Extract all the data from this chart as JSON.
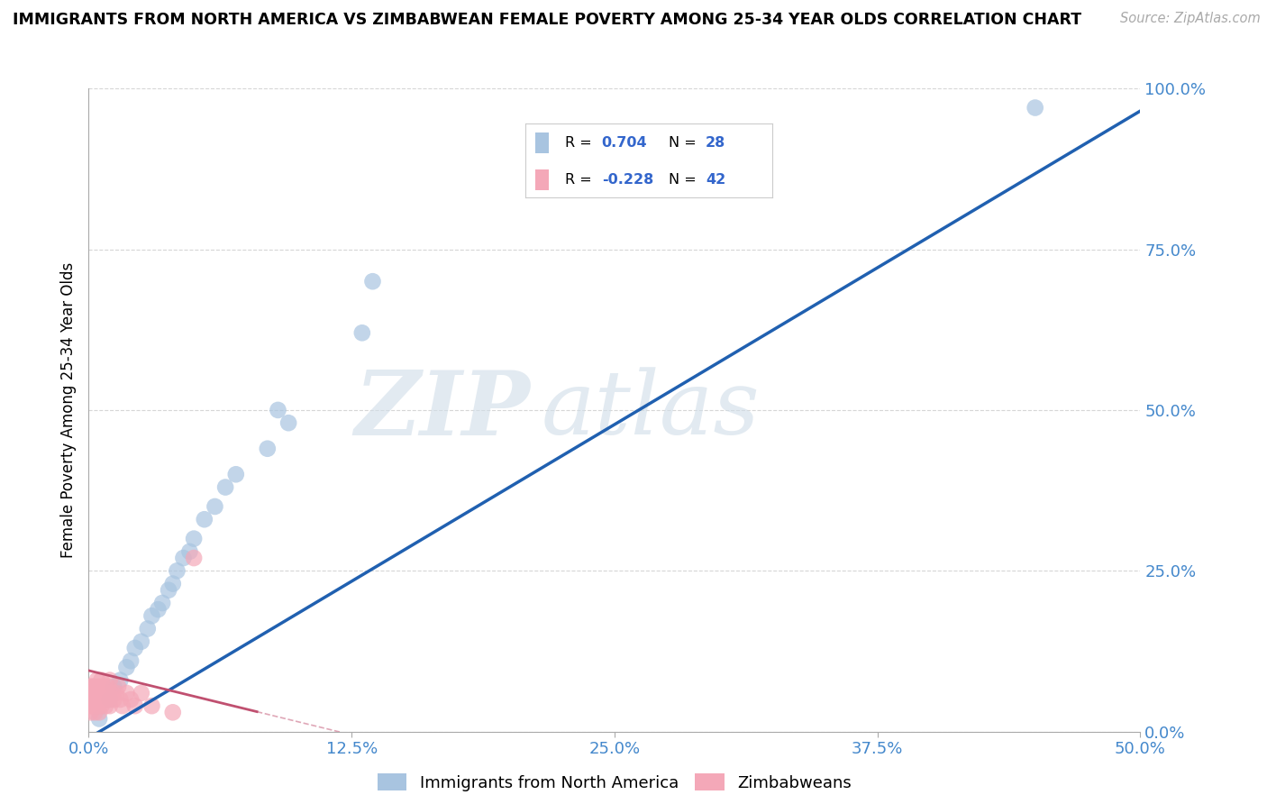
{
  "title": "IMMIGRANTS FROM NORTH AMERICA VS ZIMBABWEAN FEMALE POVERTY AMONG 25-34 YEAR OLDS CORRELATION CHART",
  "source": "Source: ZipAtlas.com",
  "xlim": [
    0.0,
    0.5
  ],
  "ylim": [
    0.0,
    1.0
  ],
  "blue_R": 0.704,
  "blue_N": 28,
  "pink_R": -0.228,
  "pink_N": 42,
  "blue_color": "#a8c4e0",
  "pink_color": "#f4a8b8",
  "blue_line_color": "#2060b0",
  "pink_line_color": "#c05070",
  "legend_label_blue": "Immigrants from North America",
  "legend_label_pink": "Zimbabweans",
  "watermark_zip": "ZIP",
  "watermark_atlas": "atlas",
  "blue_scatter_x": [
    0.005,
    0.01,
    0.012,
    0.015,
    0.018,
    0.02,
    0.022,
    0.025,
    0.028,
    0.03,
    0.033,
    0.035,
    0.038,
    0.04,
    0.042,
    0.045,
    0.048,
    0.05,
    0.055,
    0.06,
    0.065,
    0.07,
    0.085,
    0.09,
    0.095,
    0.13,
    0.135,
    0.45
  ],
  "blue_scatter_y": [
    0.02,
    0.05,
    0.07,
    0.08,
    0.1,
    0.11,
    0.13,
    0.14,
    0.16,
    0.18,
    0.19,
    0.2,
    0.22,
    0.23,
    0.25,
    0.27,
    0.28,
    0.3,
    0.33,
    0.35,
    0.38,
    0.4,
    0.44,
    0.5,
    0.48,
    0.62,
    0.7,
    0.97
  ],
  "pink_scatter_x": [
    0.001,
    0.001,
    0.001,
    0.001,
    0.001,
    0.002,
    0.002,
    0.002,
    0.002,
    0.003,
    0.003,
    0.003,
    0.004,
    0.004,
    0.004,
    0.005,
    0.005,
    0.005,
    0.006,
    0.006,
    0.006,
    0.007,
    0.007,
    0.008,
    0.008,
    0.009,
    0.009,
    0.01,
    0.01,
    0.011,
    0.012,
    0.013,
    0.014,
    0.015,
    0.016,
    0.018,
    0.02,
    0.022,
    0.025,
    0.03,
    0.04,
    0.05
  ],
  "pink_scatter_y": [
    0.03,
    0.04,
    0.05,
    0.06,
    0.07,
    0.04,
    0.05,
    0.06,
    0.07,
    0.03,
    0.05,
    0.07,
    0.04,
    0.06,
    0.08,
    0.03,
    0.05,
    0.07,
    0.04,
    0.06,
    0.08,
    0.05,
    0.07,
    0.04,
    0.06,
    0.05,
    0.07,
    0.04,
    0.08,
    0.06,
    0.05,
    0.06,
    0.07,
    0.05,
    0.04,
    0.06,
    0.05,
    0.04,
    0.06,
    0.04,
    0.03,
    0.27
  ],
  "background_color": "#ffffff",
  "grid_color": "#cccccc",
  "blue_line_x_start": 0.0,
  "blue_line_x_end": 0.5,
  "pink_line_x_start": 0.0,
  "pink_line_x_end": 0.08
}
